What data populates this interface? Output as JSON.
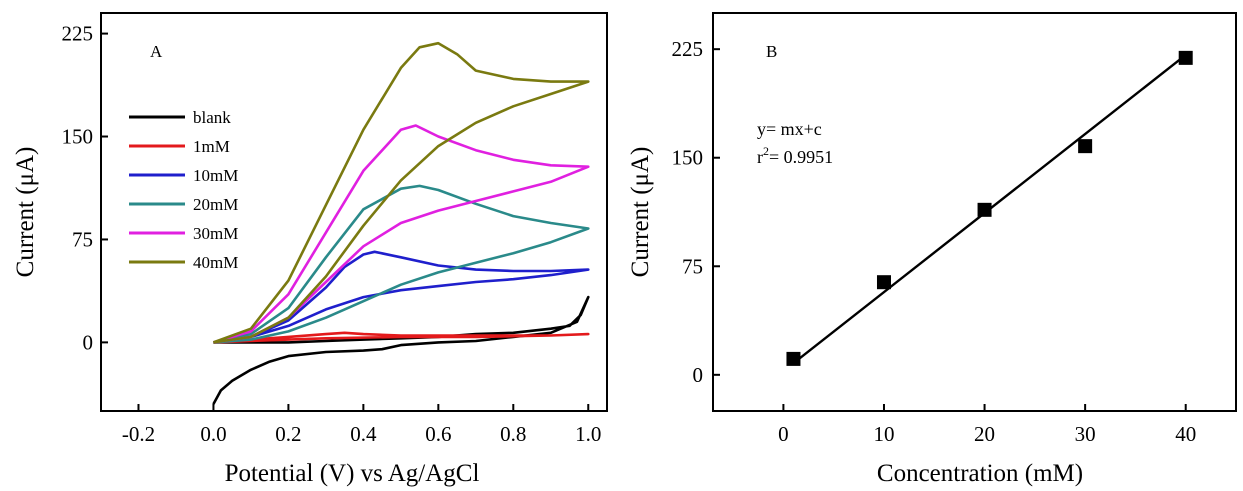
{
  "chart_data": [
    {
      "type": "line",
      "panel_label": "A",
      "xlabel": "Potential (V) vs  Ag/AgCl",
      "ylabel": "Current (μA)",
      "xlim": [
        -0.3,
        1.05
      ],
      "ylim": [
        -50,
        240
      ],
      "xticks": [
        -0.2,
        0.0,
        0.2,
        0.4,
        0.6,
        0.8,
        1.0
      ],
      "xtick_labels": [
        "-0.2",
        "0.0",
        "0.2",
        "0.4",
        "0.6",
        "0.8",
        "1.0"
      ],
      "yticks": [
        0,
        75,
        150,
        225
      ],
      "ytick_labels": [
        "0",
        "75",
        "150",
        "225"
      ],
      "grid": false,
      "legend_position": "upper-left",
      "series": [
        {
          "name": "blank",
          "color": "#000000",
          "points": [
            [
              0.0,
              -45
            ],
            [
              0.02,
              -35
            ],
            [
              0.05,
              -28
            ],
            [
              0.1,
              -20
            ],
            [
              0.15,
              -14
            ],
            [
              0.2,
              -10
            ],
            [
              0.3,
              -7
            ],
            [
              0.4,
              -6
            ],
            [
              0.45,
              -5
            ],
            [
              0.5,
              -2
            ],
            [
              0.6,
              0
            ],
            [
              0.7,
              1
            ],
            [
              0.8,
              4
            ],
            [
              0.9,
              7
            ],
            [
              0.97,
              15
            ],
            [
              1.0,
              33
            ],
            [
              0.98,
              20
            ],
            [
              0.95,
              12
            ],
            [
              0.9,
              10
            ],
            [
              0.8,
              7
            ],
            [
              0.7,
              6
            ],
            [
              0.6,
              4
            ],
            [
              0.5,
              3
            ],
            [
              0.4,
              2
            ],
            [
              0.3,
              1
            ],
            [
              0.2,
              0
            ],
            [
              0.1,
              0
            ],
            [
              0.0,
              0
            ]
          ]
        },
        {
          "name": "1mM",
          "color": "#e31a1c",
          "points": [
            [
              0.0,
              0
            ],
            [
              0.1,
              2
            ],
            [
              0.2,
              4
            ],
            [
              0.3,
              6
            ],
            [
              0.35,
              7
            ],
            [
              0.4,
              6
            ],
            [
              0.5,
              5
            ],
            [
              0.7,
              5
            ],
            [
              0.9,
              5
            ],
            [
              1.0,
              6
            ],
            [
              0.9,
              5
            ],
            [
              0.7,
              4
            ],
            [
              0.5,
              4
            ],
            [
              0.3,
              3
            ],
            [
              0.2,
              2
            ],
            [
              0.1,
              1
            ],
            [
              0.0,
              0
            ]
          ]
        },
        {
          "name": "10mM",
          "color": "#1f1fcc",
          "points": [
            [
              0.0,
              0
            ],
            [
              0.1,
              4
            ],
            [
              0.2,
              16
            ],
            [
              0.3,
              40
            ],
            [
              0.35,
              55
            ],
            [
              0.4,
              64
            ],
            [
              0.43,
              66
            ],
            [
              0.5,
              62
            ],
            [
              0.6,
              56
            ],
            [
              0.7,
              53
            ],
            [
              0.8,
              52
            ],
            [
              0.9,
              52
            ],
            [
              1.0,
              53
            ],
            [
              0.95,
              51
            ],
            [
              0.9,
              49
            ],
            [
              0.8,
              46
            ],
            [
              0.7,
              44
            ],
            [
              0.6,
              41
            ],
            [
              0.5,
              38
            ],
            [
              0.4,
              33
            ],
            [
              0.3,
              24
            ],
            [
              0.2,
              12
            ],
            [
              0.1,
              4
            ],
            [
              0.0,
              0
            ]
          ]
        },
        {
          "name": "20mM",
          "color": "#2a8a8a",
          "points": [
            [
              0.0,
              0
            ],
            [
              0.1,
              6
            ],
            [
              0.2,
              25
            ],
            [
              0.3,
              62
            ],
            [
              0.4,
              97
            ],
            [
              0.5,
              112
            ],
            [
              0.55,
              114
            ],
            [
              0.6,
              111
            ],
            [
              0.7,
              101
            ],
            [
              0.8,
              92
            ],
            [
              0.9,
              87
            ],
            [
              1.0,
              83
            ],
            [
              0.9,
              73
            ],
            [
              0.8,
              65
            ],
            [
              0.7,
              58
            ],
            [
              0.6,
              51
            ],
            [
              0.5,
              42
            ],
            [
              0.4,
              30
            ],
            [
              0.3,
              18
            ],
            [
              0.2,
              8
            ],
            [
              0.1,
              2
            ],
            [
              0.0,
              0
            ]
          ]
        },
        {
          "name": "30mM",
          "color": "#e020e0",
          "points": [
            [
              0.0,
              0
            ],
            [
              0.1,
              8
            ],
            [
              0.2,
              35
            ],
            [
              0.3,
              80
            ],
            [
              0.4,
              125
            ],
            [
              0.5,
              155
            ],
            [
              0.54,
              158
            ],
            [
              0.6,
              150
            ],
            [
              0.7,
              140
            ],
            [
              0.8,
              133
            ],
            [
              0.9,
              129
            ],
            [
              1.0,
              128
            ],
            [
              0.9,
              117
            ],
            [
              0.8,
              110
            ],
            [
              0.7,
              103
            ],
            [
              0.6,
              96
            ],
            [
              0.5,
              87
            ],
            [
              0.4,
              70
            ],
            [
              0.3,
              44
            ],
            [
              0.2,
              18
            ],
            [
              0.1,
              4
            ],
            [
              0.0,
              0
            ]
          ]
        },
        {
          "name": "40mM",
          "color": "#7a7a10",
          "points": [
            [
              0.0,
              0
            ],
            [
              0.1,
              10
            ],
            [
              0.2,
              45
            ],
            [
              0.3,
              100
            ],
            [
              0.4,
              155
            ],
            [
              0.5,
              200
            ],
            [
              0.55,
              215
            ],
            [
              0.6,
              218
            ],
            [
              0.65,
              210
            ],
            [
              0.7,
              198
            ],
            [
              0.8,
              192
            ],
            [
              0.9,
              190
            ],
            [
              1.0,
              190
            ],
            [
              0.9,
              181
            ],
            [
              0.8,
              172
            ],
            [
              0.7,
              160
            ],
            [
              0.6,
              143
            ],
            [
              0.5,
              118
            ],
            [
              0.4,
              85
            ],
            [
              0.3,
              48
            ],
            [
              0.2,
              18
            ],
            [
              0.1,
              4
            ],
            [
              0.0,
              0
            ]
          ]
        }
      ]
    },
    {
      "type": "scatter",
      "panel_label": "B",
      "xlabel": "Concentration (mM)",
      "ylabel": "Current (μA)",
      "xlim": [
        -7,
        45
      ],
      "ylim": [
        -25,
        250
      ],
      "xticks": [
        0,
        10,
        20,
        30,
        40
      ],
      "xtick_labels": [
        "0",
        "10",
        "20",
        "30",
        "40"
      ],
      "yticks": [
        0,
        75,
        150,
        225
      ],
      "ytick_labels": [
        "0",
        "75",
        "150",
        "225"
      ],
      "grid": false,
      "series": [
        {
          "marker": "square",
          "color": "#000000",
          "x": [
            1,
            10,
            20,
            30,
            40
          ],
          "y": [
            11,
            64,
            114,
            158,
            219
          ]
        }
      ],
      "fit_line": {
        "x": [
          1,
          40
        ],
        "y": [
          8,
          221
        ],
        "color": "#000000"
      },
      "annotation": {
        "equation": "y= mx+c",
        "r_prefix": "r",
        "r_superscript": "2",
        "r_value": "= 0.9951"
      }
    }
  ]
}
